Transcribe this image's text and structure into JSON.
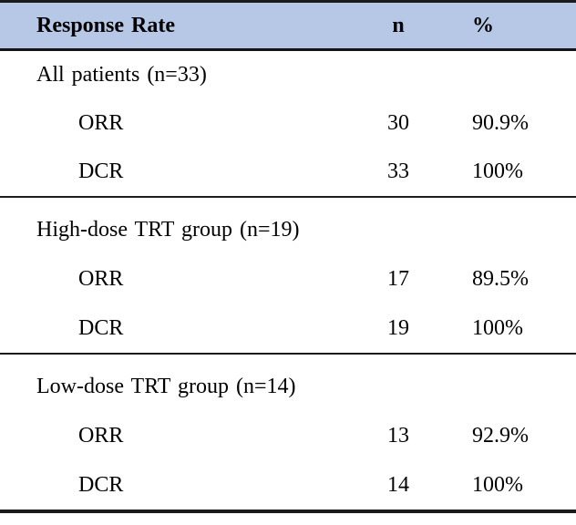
{
  "table": {
    "header": {
      "col1": "Response Rate",
      "col2": "n",
      "col3": "%"
    },
    "sections": [
      {
        "label": "All patients (n=33)",
        "rows": [
          {
            "label": "ORR",
            "n": "30",
            "pct": "90.9%"
          },
          {
            "label": "DCR",
            "n": "33",
            "pct": "100%"
          }
        ]
      },
      {
        "label": "High-dose TRT group (n=19)",
        "rows": [
          {
            "label": "ORR",
            "n": "17",
            "pct": "89.5%"
          },
          {
            "label": "DCR",
            "n": "19",
            "pct": "100%"
          }
        ]
      },
      {
        "label": "Low-dose TRT group (n=14)",
        "rows": [
          {
            "label": "ORR",
            "n": "13",
            "pct": "92.9%"
          },
          {
            "label": "DCR",
            "n": "14",
            "pct": "100%"
          }
        ]
      }
    ],
    "colors": {
      "header_bg": "#b6c8e6",
      "border": "#1b1b1b",
      "text": "#000000"
    }
  },
  "chart_data": {
    "type": "table",
    "title": "Response Rate",
    "columns": [
      "Response Rate",
      "n",
      "%"
    ],
    "rows": [
      [
        "All patients (n=33)",
        "",
        ""
      ],
      [
        "ORR",
        "30",
        "90.9%"
      ],
      [
        "DCR",
        "33",
        "100%"
      ],
      [
        "High-dose TRT group (n=19)",
        "",
        ""
      ],
      [
        "ORR",
        "17",
        "89.5%"
      ],
      [
        "DCR",
        "19",
        "100%"
      ],
      [
        "Low-dose TRT group (n=14)",
        "",
        ""
      ],
      [
        "ORR",
        "13",
        "92.9%"
      ],
      [
        "DCR",
        "14",
        "100%"
      ]
    ]
  }
}
